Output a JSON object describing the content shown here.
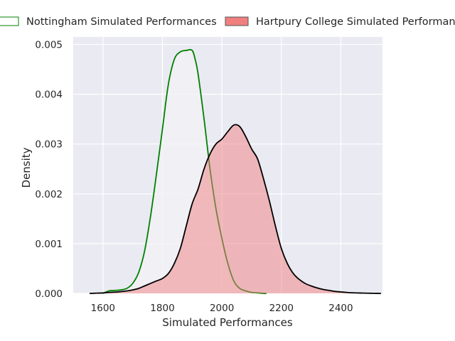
{
  "chart_data": {
    "type": "area",
    "xlabel": "Simulated Performances",
    "ylabel": "Density",
    "xlim": [
      1500,
      2540
    ],
    "ylim": [
      0,
      0.00515
    ],
    "x_ticks": [
      1600,
      1800,
      2000,
      2200,
      2400
    ],
    "x_tick_labels": [
      "1600",
      "1800",
      "2000",
      "2200",
      "2400"
    ],
    "y_ticks": [
      0,
      0.001,
      0.002,
      0.003,
      0.004,
      0.005
    ],
    "y_tick_labels": [
      "0.000",
      "0.001",
      "0.002",
      "0.003",
      "0.004",
      "0.005"
    ],
    "grid": true,
    "legend_placement": "top",
    "colors": {
      "plot_background": "#eaeaf2",
      "grid": "#ffffff",
      "nottingham_line": "#008000",
      "nottingham_fill": "#f2f2f6",
      "hartpury_line": "#000000",
      "hartpury_fill": "#f08080"
    },
    "series": [
      {
        "name": "Nottingham Simulated Performances",
        "style": "line",
        "x": [
          1600,
          1620,
          1640,
          1660,
          1680,
          1700,
          1720,
          1740,
          1760,
          1780,
          1800,
          1820,
          1840,
          1860,
          1880,
          1900,
          1910,
          1920,
          1940,
          1960,
          1980,
          2000,
          2020,
          2040,
          2060,
          2080,
          2100,
          2120,
          2140,
          2150
        ],
        "values": [
          0,
          5e-05,
          6e-05,
          7e-05,
          0.0001,
          0.0002,
          0.00042,
          0.00085,
          0.00155,
          0.0024,
          0.0033,
          0.0042,
          0.0047,
          0.00485,
          0.00488,
          0.00488,
          0.0047,
          0.0044,
          0.0035,
          0.0025,
          0.0017,
          0.0011,
          0.0006,
          0.00025,
          0.0001,
          5e-05,
          2e-05,
          1e-05,
          0,
          0
        ]
      },
      {
        "name": "Hartpury College Simulated Performances",
        "style": "filled",
        "x": [
          1555,
          1580,
          1600,
          1620,
          1650,
          1680,
          1700,
          1720,
          1740,
          1760,
          1780,
          1800,
          1820,
          1840,
          1860,
          1880,
          1900,
          1920,
          1940,
          1960,
          1980,
          2000,
          2020,
          2040,
          2060,
          2080,
          2100,
          2120,
          2140,
          2160,
          2180,
          2200,
          2220,
          2240,
          2260,
          2280,
          2300,
          2320,
          2340,
          2360,
          2380,
          2400,
          2420,
          2440,
          2460,
          2480,
          2500,
          2520,
          2535
        ],
        "values": [
          0,
          5e-06,
          1e-05,
          2e-05,
          3e-05,
          5e-05,
          7e-05,
          0.0001,
          0.00015,
          0.0002,
          0.00025,
          0.0003,
          0.0004,
          0.0006,
          0.0009,
          0.00135,
          0.0018,
          0.0021,
          0.0025,
          0.0028,
          0.003,
          0.0031,
          0.00325,
          0.00338,
          0.00335,
          0.00315,
          0.0029,
          0.0027,
          0.0023,
          0.00185,
          0.00135,
          0.0009,
          0.0006,
          0.0004,
          0.00028,
          0.0002,
          0.00015,
          0.00011,
          8e-05,
          6e-05,
          4e-05,
          3e-05,
          2e-05,
          1.2e-05,
          8e-06,
          5e-06,
          3e-06,
          1e-06,
          0
        ]
      }
    ]
  }
}
